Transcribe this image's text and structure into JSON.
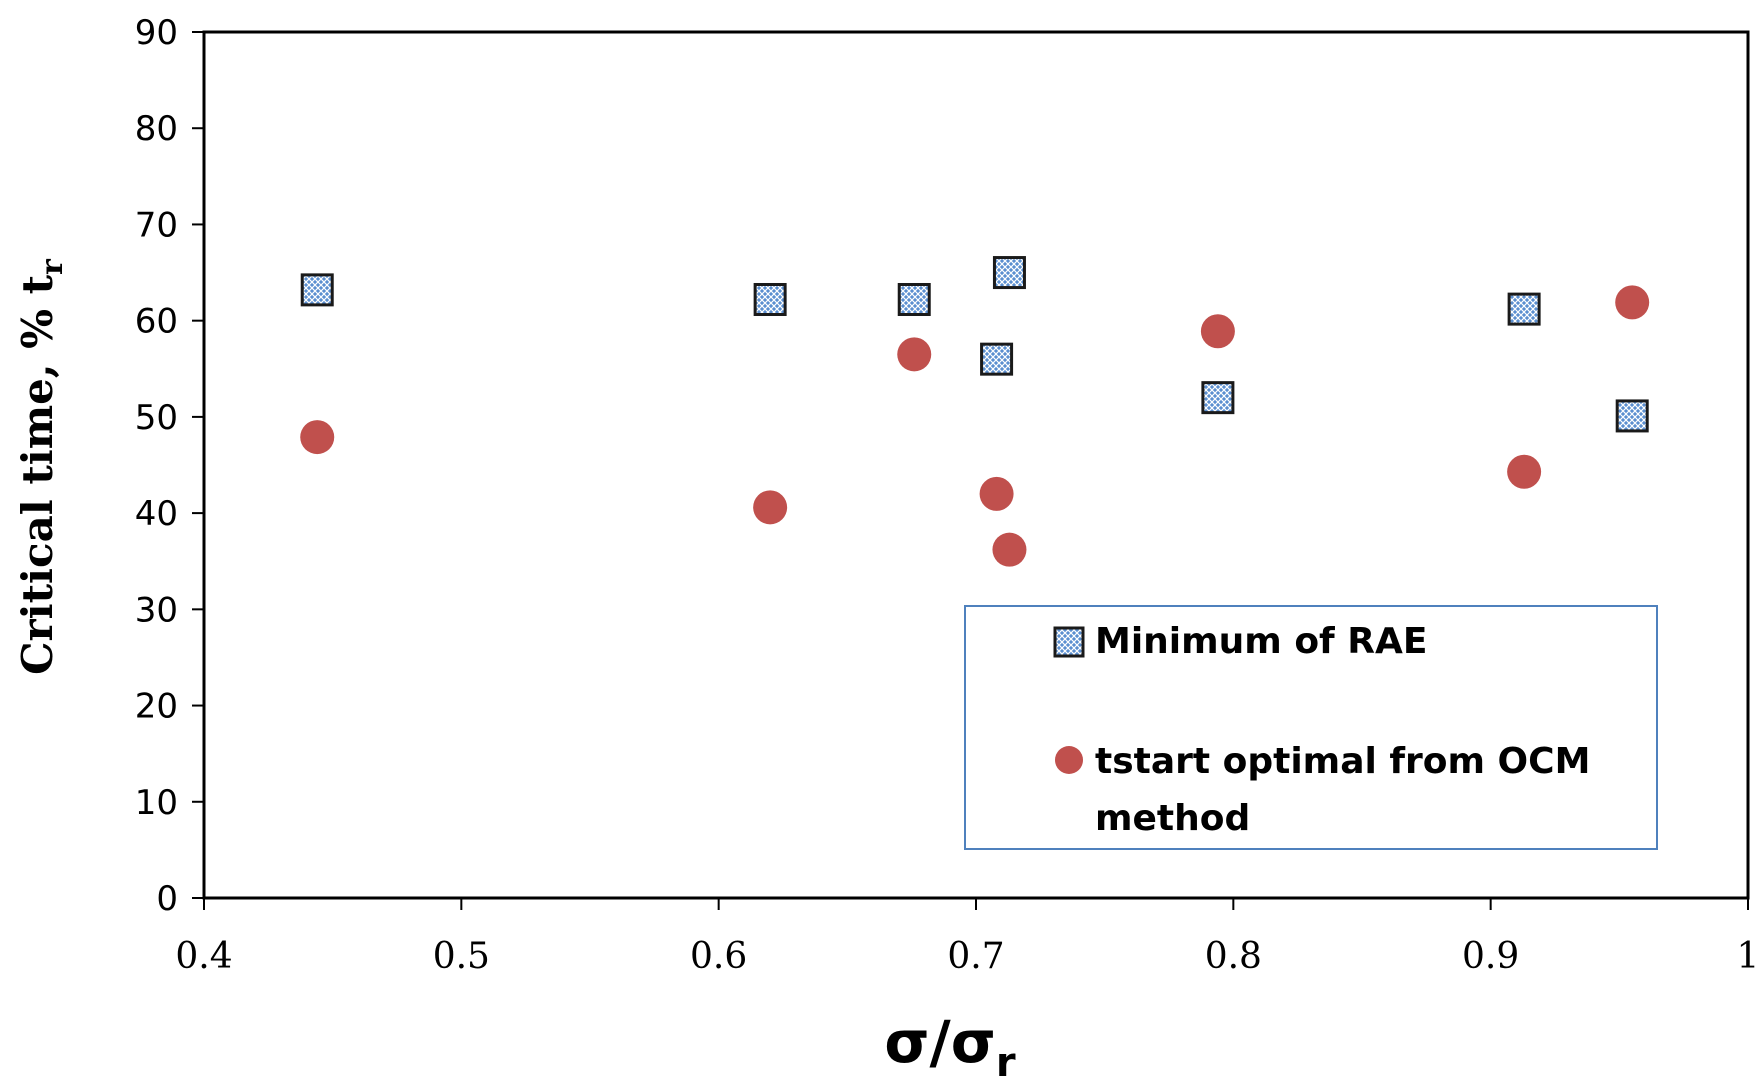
{
  "chart_data": {
    "type": "scatter",
    "title": "",
    "xlabel": "σ/σ",
    "xlabel_sub": "r",
    "ylabel": "Critical time, % t",
    "ylabel_sub": "r",
    "xlim": [
      0.4,
      1
    ],
    "ylim": [
      0,
      90
    ],
    "xticks": [
      0.4,
      0.5,
      0.6,
      0.7,
      0.8,
      0.9,
      1
    ],
    "xtick_labels": [
      "0.4",
      "0.5",
      "0.6",
      "0.7",
      "0.8",
      "0.9",
      "1"
    ],
    "yticks": [
      0,
      10,
      20,
      30,
      40,
      50,
      60,
      70,
      80,
      90
    ],
    "ytick_labels": [
      "0",
      "10",
      "20",
      "30",
      "40",
      "50",
      "60",
      "70",
      "80",
      "90"
    ],
    "grid": false,
    "legend_position": "bottom-right",
    "series": [
      {
        "name": "Minimum of RAE",
        "marker": "hatched-square",
        "color": "#5b8fd0",
        "points": [
          {
            "x": 0.444,
            "y": 63.2
          },
          {
            "x": 0.62,
            "y": 62.2
          },
          {
            "x": 0.676,
            "y": 62.2
          },
          {
            "x": 0.713,
            "y": 65.0
          },
          {
            "x": 0.708,
            "y": 56.0
          },
          {
            "x": 0.794,
            "y": 52.0
          },
          {
            "x": 0.913,
            "y": 61.2
          },
          {
            "x": 0.955,
            "y": 50.1
          }
        ]
      },
      {
        "name": "tstart optimal from OCM method",
        "name_lines": [
          "tstart optimal from OCM",
          "method"
        ],
        "marker": "circle",
        "color": "#c0504d",
        "points": [
          {
            "x": 0.444,
            "y": 47.9
          },
          {
            "x": 0.62,
            "y": 40.6
          },
          {
            "x": 0.676,
            "y": 56.5
          },
          {
            "x": 0.708,
            "y": 42.0
          },
          {
            "x": 0.713,
            "y": 36.2
          },
          {
            "x": 0.794,
            "y": 58.9
          },
          {
            "x": 0.913,
            "y": 44.3
          },
          {
            "x": 0.955,
            "y": 61.9
          }
        ]
      }
    ]
  },
  "colors": {
    "axis": "#000000",
    "legend_border": "#4f81bd",
    "square_fill": "#5b8fd0",
    "square_edge": "#1a1a1a",
    "circle_fill": "#c0504d"
  }
}
